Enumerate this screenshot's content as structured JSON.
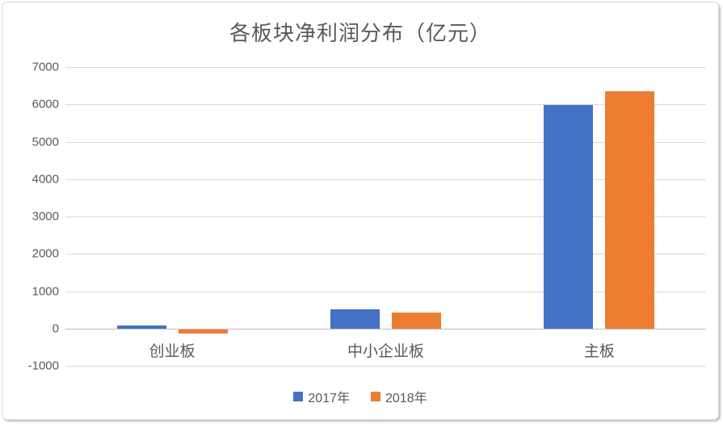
{
  "chart_data": {
    "type": "bar",
    "title": "各板块净利润分布（亿元）",
    "categories": [
      "创业板",
      "中小企业板",
      "主板"
    ],
    "series": [
      {
        "name": "2017年",
        "color": "#4472C4",
        "values": [
          90,
          520,
          5980
        ]
      },
      {
        "name": "2018年",
        "color": "#ED7D31",
        "values": [
          -120,
          430,
          6350
        ]
      }
    ],
    "xlabel": "",
    "ylabel": "",
    "ylim": [
      -1000,
      7000
    ],
    "ytick_step": 1000,
    "grid": true,
    "legend_position": "bottom",
    "colors": {
      "text": "#595959",
      "gridline": "#d9d9d9",
      "zero_axis": "#bfbfbf",
      "background": "#ffffff",
      "card_border": "#d9d9d9"
    }
  }
}
